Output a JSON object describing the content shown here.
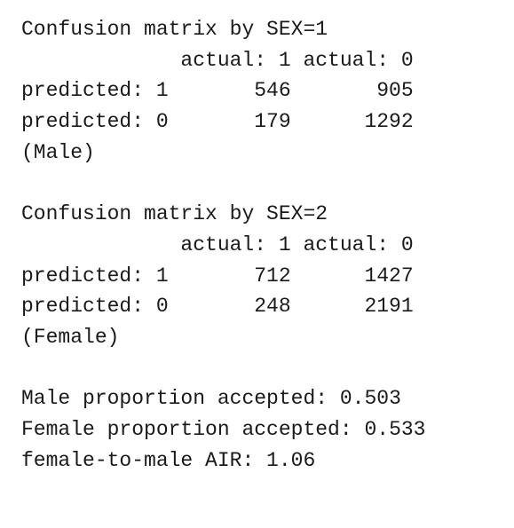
{
  "matrices": [
    {
      "title": "Confusion matrix by SEX=1",
      "columns": [
        "actual: 1",
        "actual: 0"
      ],
      "rows": [
        {
          "label": "predicted: 1",
          "values": [
            546,
            905
          ]
        },
        {
          "label": "predicted: 0",
          "values": [
            179,
            1292
          ]
        }
      ],
      "note": "(Male)"
    },
    {
      "title": "Confusion matrix by SEX=2",
      "columns": [
        "actual: 1",
        "actual: 0"
      ],
      "rows": [
        {
          "label": "predicted: 1",
          "values": [
            712,
            1427
          ]
        },
        {
          "label": "predicted: 0",
          "values": [
            248,
            2191
          ]
        }
      ],
      "note": "(Female)"
    }
  ],
  "summary": [
    "Male proportion accepted: 0.503",
    "Female proportion accepted: 0.533",
    "female-to-male AIR: 1.06"
  ]
}
